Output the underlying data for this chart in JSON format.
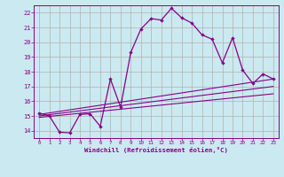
{
  "background_color": "#cbe9f0",
  "line_color": "#880088",
  "grid_color": "#b0b0b0",
  "xlabel": "Windchill (Refroidissement éolien,°C)",
  "xlim": [
    -0.5,
    23.5
  ],
  "ylim": [
    13.5,
    22.5
  ],
  "xticks": [
    0,
    1,
    2,
    3,
    4,
    5,
    6,
    7,
    8,
    9,
    10,
    11,
    12,
    13,
    14,
    15,
    16,
    17,
    18,
    19,
    20,
    21,
    22,
    23
  ],
  "yticks": [
    14,
    15,
    16,
    17,
    18,
    19,
    20,
    21,
    22
  ],
  "main_series": {
    "x": [
      0,
      1,
      2,
      3,
      4,
      5,
      6,
      7,
      8,
      9,
      10,
      11,
      12,
      13,
      14,
      15,
      16,
      17,
      18,
      19,
      20,
      21,
      22,
      23
    ],
    "y": [
      15.2,
      15.0,
      13.9,
      13.85,
      15.1,
      15.15,
      14.3,
      17.5,
      15.6,
      19.3,
      20.9,
      21.6,
      21.5,
      22.3,
      21.65,
      21.3,
      20.5,
      20.2,
      18.6,
      20.3,
      18.1,
      17.2,
      17.85,
      17.5
    ]
  },
  "straight_lines": [
    {
      "x": [
        0,
        23
      ],
      "y": [
        15.1,
        17.5
      ]
    },
    {
      "x": [
        0,
        23
      ],
      "y": [
        15.0,
        17.0
      ]
    },
    {
      "x": [
        0,
        23
      ],
      "y": [
        14.9,
        16.5
      ]
    }
  ]
}
